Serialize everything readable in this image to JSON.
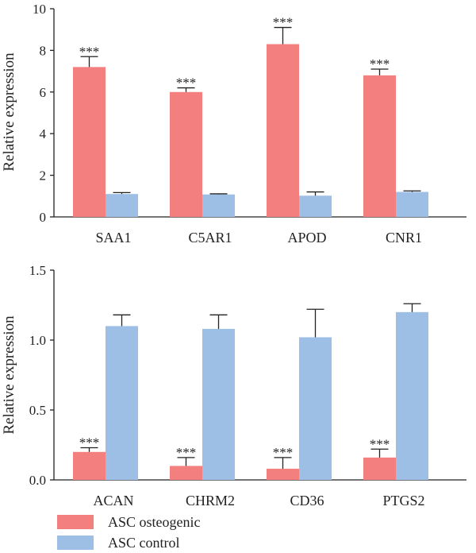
{
  "colors": {
    "osteogenic": "#f47f7f",
    "control": "#9dbfe6",
    "axis": "#222222"
  },
  "legend": {
    "items": [
      {
        "label": "ASC osteogenic",
        "color": "#f47f7f"
      },
      {
        "label": "ASC control",
        "color": "#9dbfe6"
      }
    ]
  },
  "chart_data": [
    {
      "type": "bar",
      "categories": [
        "SAA1",
        "C5AR1",
        "APOD",
        "CNR1"
      ],
      "series": [
        {
          "name": "ASC osteogenic",
          "values": [
            7.2,
            6.0,
            8.3,
            6.8
          ],
          "errors": [
            0.5,
            0.2,
            0.8,
            0.3
          ],
          "sig": [
            "***",
            "***",
            "***",
            "***"
          ]
        },
        {
          "name": "ASC control",
          "values": [
            1.1,
            1.08,
            1.02,
            1.2
          ],
          "errors": [
            0.07,
            0.03,
            0.18,
            0.05
          ],
          "sig": [
            "",
            "",
            "",
            ""
          ]
        }
      ],
      "ylabel": "Relative expression",
      "ylim": [
        0,
        10
      ],
      "yticks": [
        "0",
        "2",
        "4",
        "6",
        "8",
        "10"
      ],
      "ytick_values": [
        0,
        2,
        4,
        6,
        8,
        10
      ]
    },
    {
      "type": "bar",
      "categories": [
        "ACAN",
        "CHRM2",
        "CD36",
        "PTGS2"
      ],
      "series": [
        {
          "name": "ASC osteogenic",
          "values": [
            0.2,
            0.1,
            0.08,
            0.16
          ],
          "errors": [
            0.03,
            0.06,
            0.08,
            0.06
          ],
          "sig": [
            "***",
            "***",
            "***",
            "***"
          ]
        },
        {
          "name": "ASC control",
          "values": [
            1.1,
            1.08,
            1.02,
            1.2
          ],
          "errors": [
            0.08,
            0.1,
            0.2,
            0.06
          ],
          "sig": [
            "",
            "",
            "",
            ""
          ]
        }
      ],
      "ylabel": "Relative expression",
      "ylim": [
        0,
        1.5
      ],
      "yticks": [
        "0.0",
        "0.5",
        "1.0",
        "1.5"
      ],
      "ytick_values": [
        0,
        0.5,
        1.0,
        1.5
      ]
    }
  ]
}
